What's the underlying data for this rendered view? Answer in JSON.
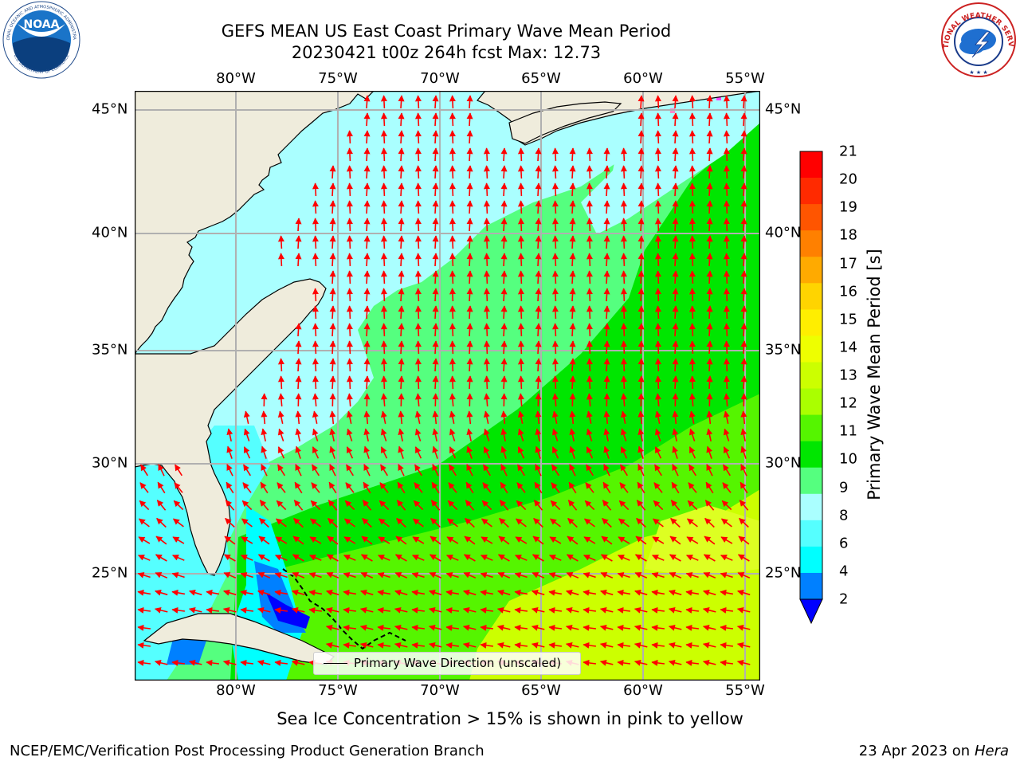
{
  "header": {
    "title_line1": "GEFS MEAN US East Coast Primary Wave Mean Period",
    "title_line2": "20230421 t00z 264h fcst   Max: 12.73"
  },
  "logos": {
    "left": "noaa-logo",
    "left_text_top": "NATIONAL OCEANIC AND ATMOSPHERIC ADMINISTRATION",
    "left_text_bottom": "U.S. DEPARTMENT OF COMMERCE",
    "left_emblem": "NOAA",
    "right": "nws-logo",
    "right_text": "NATIONAL WEATHER SERVICE"
  },
  "map": {
    "lon_labels": [
      "80°W",
      "75°W",
      "70°W",
      "65°W",
      "60°W",
      "55°W"
    ],
    "lat_labels": [
      "45°N",
      "40°N",
      "35°N",
      "30°N",
      "25°N"
    ],
    "extent": {
      "lon_min": -85,
      "lon_max": -54.2,
      "lat_min": 20.5,
      "lat_max": 46
    },
    "colors": {
      "land": "#efecdc",
      "grid": "#b0b0b0",
      "arrow": "#ff0000",
      "coast": "#000000"
    }
  },
  "legend": {
    "text": "Primary Wave Direction (unscaled)"
  },
  "colorbar": {
    "label": "Primary Wave Mean Period [s]",
    "ticks": [
      "21",
      "20",
      "19",
      "18",
      "17",
      "16",
      "15",
      "14",
      "13",
      "12",
      "11",
      "10",
      "9",
      "8",
      "6",
      "4",
      "2"
    ],
    "colors": [
      "#ff0000",
      "#ff2a00",
      "#ff5500",
      "#ff8000",
      "#ffaa00",
      "#ffd400",
      "#ffee00",
      "#eeff00",
      "#ccff00",
      "#aaff00",
      "#55f500",
      "#00e600",
      "#55ff7f",
      "#aaffff",
      "#55ffff",
      "#00ffff",
      "#0080ff",
      "#0000ff"
    ]
  },
  "footer": {
    "sea_ice": "Sea Ice Concentration > 15% is shown in pink to yellow",
    "left": "NCEP/EMC/Verification Post Processing Product Generation Branch",
    "date": "23 Apr 2023 on ",
    "machine": "Hera"
  }
}
